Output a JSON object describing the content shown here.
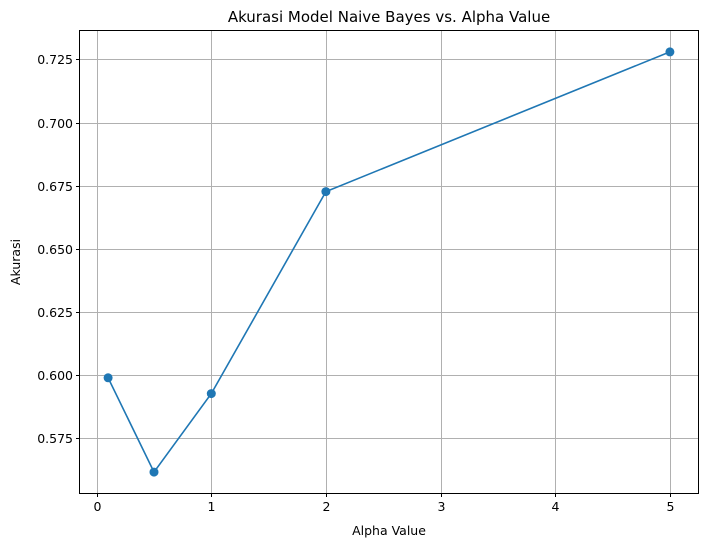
{
  "chart_data": {
    "type": "line",
    "title": "Akurasi Model Naive Bayes vs. Alpha Value",
    "xlabel": "Alpha Value",
    "ylabel": "Akurasi",
    "x": [
      0.1,
      0.5,
      1,
      2,
      5
    ],
    "series": [
      {
        "values": [
          0.5988,
          0.5614,
          0.5925,
          0.6726,
          0.728
        ],
        "color": "#1f77b4",
        "marker": "circle"
      }
    ],
    "xlim": [
      -0.145,
      5.245
    ],
    "ylim": [
      0.5531,
      0.7363
    ],
    "xticks": [
      0,
      1,
      2,
      3,
      4,
      5
    ],
    "xtick_labels": [
      "0",
      "1",
      "2",
      "3",
      "4",
      "5"
    ],
    "yticks": [
      0.575,
      0.6,
      0.625,
      0.65,
      0.675,
      0.7,
      0.725
    ],
    "ytick_labels": [
      "0.575",
      "0.600",
      "0.625",
      "0.650",
      "0.675",
      "0.700",
      "0.725"
    ],
    "grid": true,
    "legend": "none"
  }
}
